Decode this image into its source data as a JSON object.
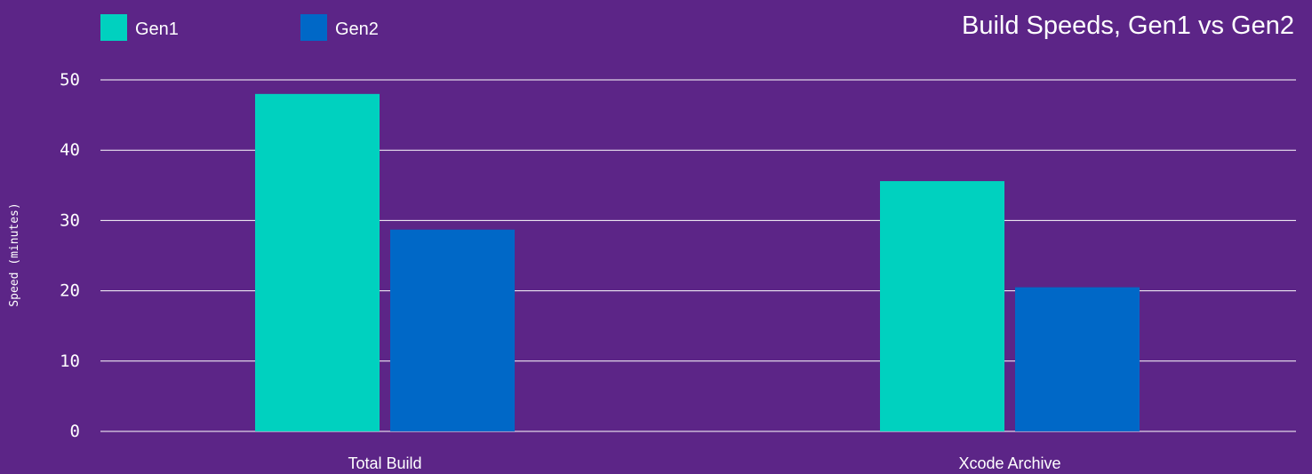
{
  "chart_data": {
    "type": "bar",
    "title": "Build Speeds, Gen1 vs Gen2",
    "ylabel": "Speed (minutes)",
    "xlabel": "",
    "ylim": [
      0,
      50
    ],
    "yticks": [
      0,
      10,
      20,
      30,
      40,
      50
    ],
    "categories": [
      "Total Build",
      "Xcode Archive"
    ],
    "series": [
      {
        "name": "Gen1",
        "color": "#00d1bf",
        "values": [
          48,
          35.6
        ]
      },
      {
        "name": "Gen2",
        "color": "#0068c7",
        "values": [
          28.7,
          20.5
        ]
      }
    ],
    "legend_position": "top-left",
    "grid": true
  },
  "colors": {
    "background": "#5c2587",
    "gridline": "#ffffff",
    "text": "#ffffff"
  }
}
